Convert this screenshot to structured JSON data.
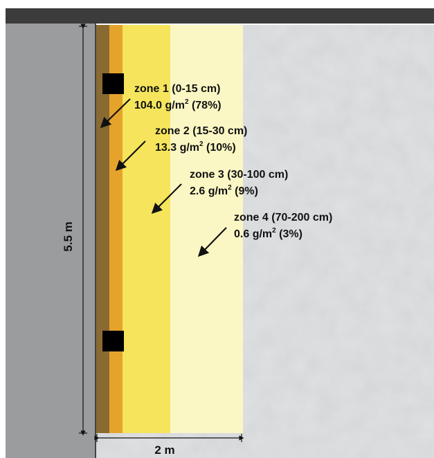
{
  "zones": [
    {
      "name": "zone 1 (0-15 cm)",
      "amount": "104.0 g/m",
      "unit_sup": "2",
      "share": " (78%)"
    },
    {
      "name": "zone 2 (15-30 cm)",
      "amount": "13.3 g/m",
      "unit_sup": "2",
      "share": " (10%)"
    },
    {
      "name": "zone 3 (30-100 cm)",
      "amount": "2.6 g/m",
      "unit_sup": "2",
      "share": " (9%)"
    },
    {
      "name": "zone 4 (70-200 cm)",
      "amount": "0.6 g/m",
      "unit_sup": "2",
      "share": " (3%)"
    }
  ],
  "dimensions": {
    "height": "5.5 m",
    "width": "2 m"
  },
  "colors": {
    "wall": "#9a9c9e",
    "roof": "#3c3c3c",
    "ground": "#d4d6d8",
    "zone1_inner": "#8a6a33",
    "zone1": "#e6a32b",
    "zone2": "#f6e55c",
    "zone3": "#fbf7c4"
  }
}
